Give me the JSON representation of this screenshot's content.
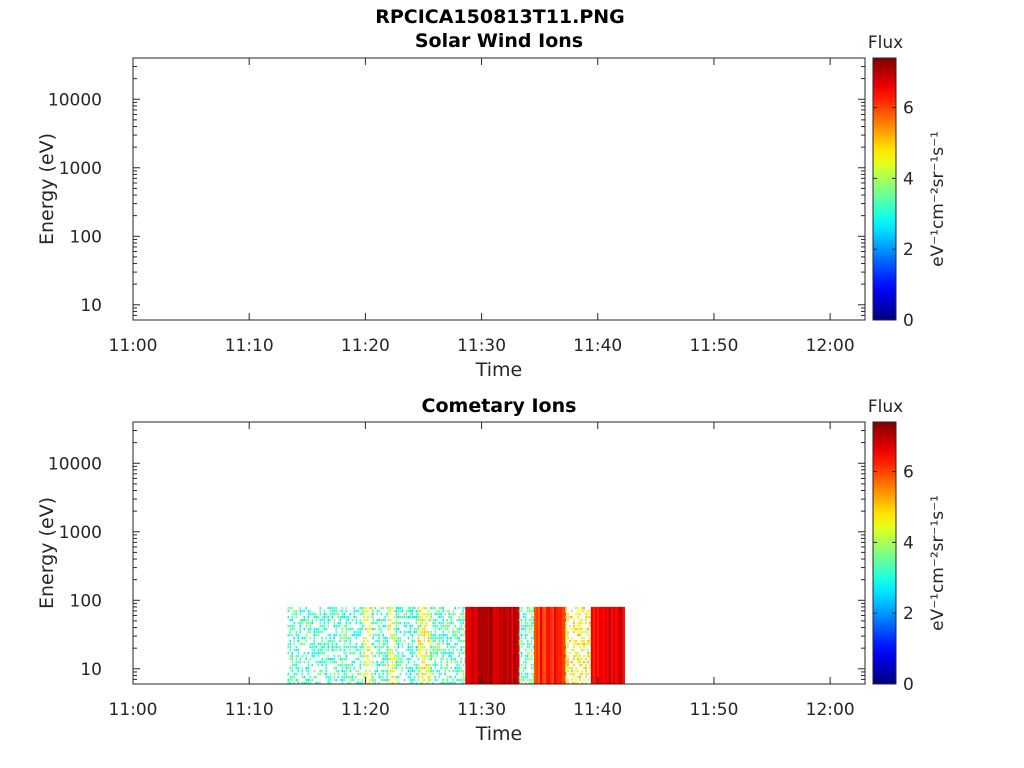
{
  "figure_title": "RPCICA150813T11.PNG",
  "chart_data": [
    {
      "type": "heatmap",
      "title": "Solar Wind Ions",
      "xlabel": "Time",
      "ylabel": "Energy (eV)",
      "y_scale": "log",
      "ylim": [
        6,
        40000
      ],
      "xlim": [
        "11:00",
        "12:03"
      ],
      "x_ticks": [
        "11:00",
        "11:10",
        "11:20",
        "11:30",
        "11:40",
        "11:50",
        "12:00"
      ],
      "y_ticks": [
        "10",
        "100",
        "1000",
        "10000"
      ],
      "colorbar": {
        "title": "Flux",
        "unit": "eV⁻¹cm⁻²sr⁻¹s⁻¹",
        "ticks": [
          "0",
          "2",
          "4",
          "6"
        ],
        "range": [
          0,
          7.4
        ],
        "colormap": "jet"
      },
      "bands": []
    },
    {
      "type": "heatmap",
      "title": "Cometary Ions",
      "xlabel": "Time",
      "ylabel": "Energy (eV)",
      "y_scale": "log",
      "ylim": [
        6,
        40000
      ],
      "xlim": [
        "11:00",
        "12:03"
      ],
      "x_ticks": [
        "11:00",
        "11:10",
        "11:20",
        "11:30",
        "11:40",
        "11:50",
        "12:00"
      ],
      "y_ticks": [
        "10",
        "100",
        "1000",
        "10000"
      ],
      "colorbar": {
        "title": "Flux",
        "unit": "eV⁻¹cm⁻²sr⁻¹s⁻¹",
        "ticks": [
          "0",
          "2",
          "4",
          "6"
        ],
        "range": [
          0,
          7.4
        ],
        "colormap": "jet"
      },
      "energy_range": [
        6,
        80
      ],
      "bands": [
        {
          "start": "11:13.3",
          "end": "11:19.8",
          "flux": 3.2,
          "sparse": true
        },
        {
          "start": "11:19.8",
          "end": "11:20.6",
          "flux": 4.5,
          "sparse": true
        },
        {
          "start": "11:20.6",
          "end": "11:21.9",
          "flux": 3.2,
          "sparse": true
        },
        {
          "start": "11:21.9",
          "end": "11:22.6",
          "flux": 4.4,
          "sparse": true
        },
        {
          "start": "11:22.6",
          "end": "11:24.5",
          "flux": 3.1,
          "sparse": true
        },
        {
          "start": "11:24.5",
          "end": "11:25.6",
          "flux": 4.5,
          "sparse": true
        },
        {
          "start": "11:25.6",
          "end": "11:28.6",
          "flux": 3.3,
          "sparse": true
        },
        {
          "start": "11:28.6",
          "end": "11:33.2",
          "flux": 6.9,
          "sparse": false
        },
        {
          "start": "11:33.2",
          "end": "11:34.5",
          "flux": 3.3,
          "sparse": true
        },
        {
          "start": "11:34.5",
          "end": "11:37.2",
          "flux": 6.2,
          "sparse": false
        },
        {
          "start": "11:37.2",
          "end": "11:39.4",
          "flux": 4.6,
          "sparse": true
        },
        {
          "start": "11:39.4",
          "end": "11:42.2",
          "flux": 6.6,
          "sparse": false
        }
      ]
    }
  ]
}
